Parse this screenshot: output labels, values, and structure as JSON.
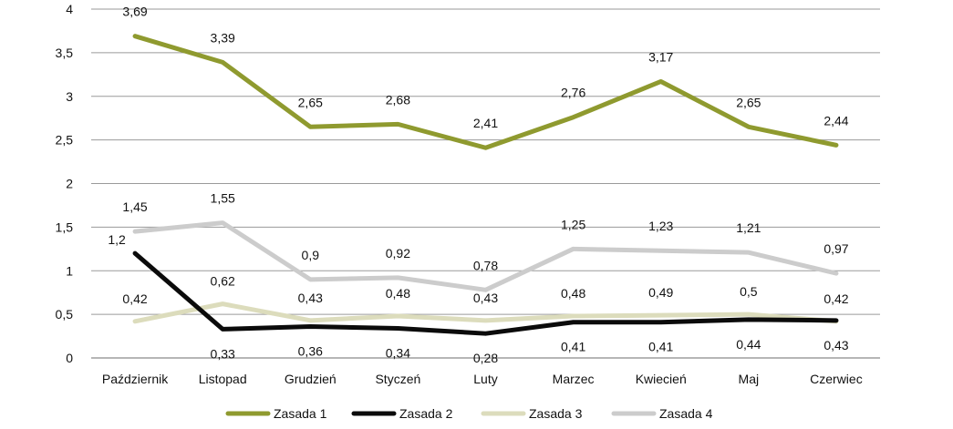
{
  "chart_data": {
    "type": "line",
    "title": "",
    "xlabel": "",
    "ylabel": "",
    "categories": [
      "Październik",
      "Listopad",
      "Grudzień",
      "Styczeń",
      "Luty",
      "Marzec",
      "Kwiecień",
      "Maj",
      "Czerwiec"
    ],
    "ylim": [
      0,
      4
    ],
    "yticks": [
      0,
      0.5,
      1,
      1.5,
      2,
      2.5,
      3,
      3.5,
      4
    ],
    "ytick_labels": [
      "0",
      "0,5",
      "1",
      "1,5",
      "2",
      "2,5",
      "3",
      "3,5",
      "4"
    ],
    "grid": true,
    "legend_position": "bottom",
    "series": [
      {
        "name": "Zasada 1",
        "color": "#8f9a2f",
        "values": [
          3.69,
          3.39,
          2.65,
          2.68,
          2.41,
          2.76,
          3.17,
          2.65,
          2.44
        ],
        "labels": [
          "3,69",
          "3,39",
          "2,65",
          "2,68",
          "2,41",
          "2,76",
          "3,17",
          "2,65",
          "2,44"
        ]
      },
      {
        "name": "Zasada 2",
        "color": "#0b0b0b",
        "values": [
          1.2,
          0.33,
          0.36,
          0.34,
          0.28,
          0.41,
          0.41,
          0.44,
          0.43
        ],
        "labels": [
          "1,2",
          "0,33",
          "0,36",
          "0,34",
          "0,28",
          "0,41",
          "0,41",
          "0,44",
          "0,43"
        ]
      },
      {
        "name": "Zasada 3",
        "color": "#dcdcbc",
        "values": [
          0.42,
          0.62,
          0.43,
          0.48,
          0.43,
          0.48,
          0.49,
          0.5,
          0.42
        ],
        "labels": [
          "0,42",
          "0,62",
          "0,43",
          "0,48",
          "0,43",
          "0,48",
          "0,49",
          "0,5",
          "0,42"
        ]
      },
      {
        "name": "Zasada 4",
        "color": "#cccccc",
        "values": [
          1.45,
          1.55,
          0.9,
          0.92,
          0.78,
          1.25,
          1.23,
          1.21,
          0.97
        ],
        "labels": [
          "1,45",
          "1,55",
          "0,9",
          "0,92",
          "0,78",
          "1,25",
          "1,23",
          "1,21",
          "0,97"
        ]
      }
    ]
  }
}
